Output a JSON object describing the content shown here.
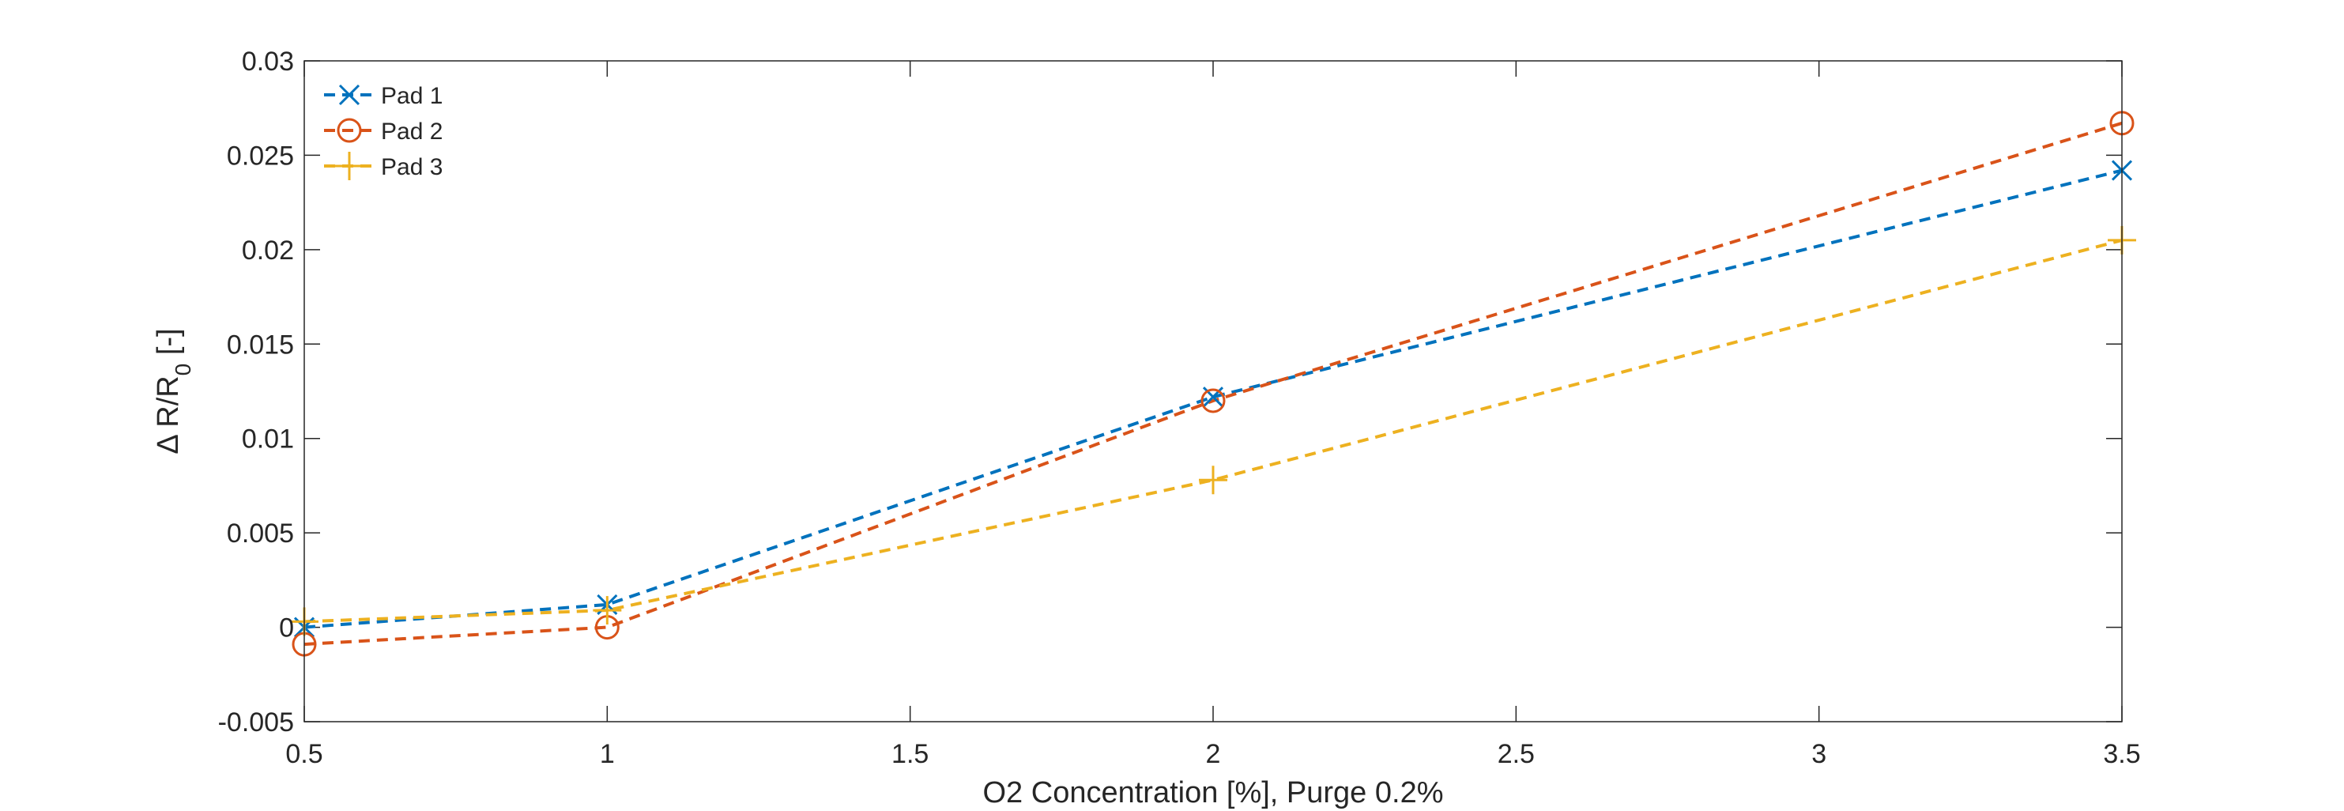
{
  "chart_data": {
    "type": "line",
    "xlabel": "O2 Concentration [%], Purge 0.2%",
    "ylabel_main": "Δ R/R",
    "ylabel_sub": "0",
    "ylabel_unit": " [-]",
    "xlim": [
      0.5,
      3.5
    ],
    "ylim": [
      -0.005,
      0.03
    ],
    "xticks": [
      {
        "value": 0.5,
        "label": "0.5"
      },
      {
        "value": 1,
        "label": "1"
      },
      {
        "value": 1.5,
        "label": "1.5"
      },
      {
        "value": 2,
        "label": "2"
      },
      {
        "value": 2.5,
        "label": "2.5"
      },
      {
        "value": 3,
        "label": "3"
      },
      {
        "value": 3.5,
        "label": "3.5"
      }
    ],
    "yticks": [
      {
        "value": -0.005,
        "label": "-0.005"
      },
      {
        "value": 0,
        "label": "0"
      },
      {
        "value": 0.005,
        "label": "0.005"
      },
      {
        "value": 0.01,
        "label": "0.01"
      },
      {
        "value": 0.015,
        "label": "0.015"
      },
      {
        "value": 0.02,
        "label": "0.02"
      },
      {
        "value": 0.025,
        "label": "0.025"
      },
      {
        "value": 0.03,
        "label": "0.03"
      }
    ],
    "grid": false,
    "legend_position": "top-left",
    "x": [
      0.5,
      1,
      2,
      3.5
    ],
    "series": [
      {
        "name": "Pad 1",
        "color": "#0072BD",
        "marker": "x",
        "line": "dashed",
        "values": [
          0.0,
          0.0012,
          0.0122,
          0.0242
        ]
      },
      {
        "name": "Pad 2",
        "color": "#D95319",
        "marker": "circle",
        "line": "dashed",
        "values": [
          -0.0009,
          0.0,
          0.012,
          0.0267
        ]
      },
      {
        "name": "Pad 3",
        "color": "#EDB120",
        "marker": "plus",
        "line": "dashed",
        "values": [
          0.0003,
          0.0009,
          0.0078,
          0.0205
        ]
      }
    ]
  }
}
